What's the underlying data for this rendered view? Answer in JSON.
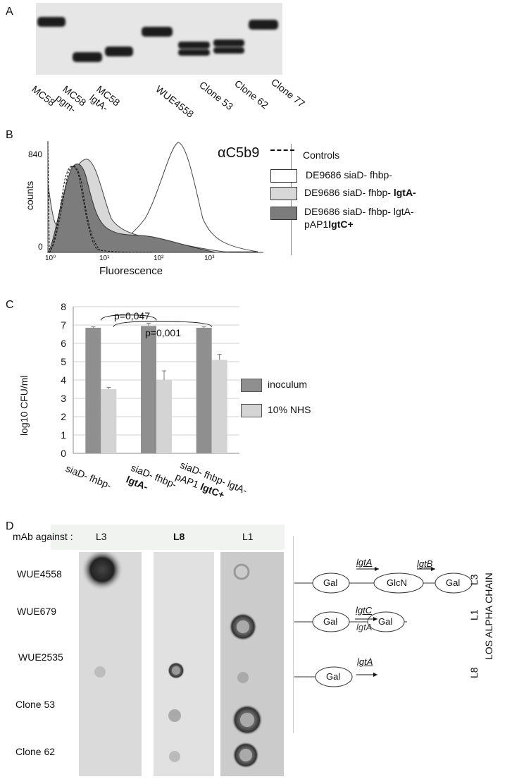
{
  "panels": {
    "a": {
      "letter": "A",
      "lanes": [
        "MC58",
        "MC58\npgm-",
        "MC58\nlgtA-",
        "WUE4558",
        "Clone 53",
        "Clone 62",
        "Clone 77"
      ]
    },
    "b": {
      "letter": "B",
      "title": "αC5b9",
      "ylabel": "counts",
      "xlabel": "Fluorescence",
      "ymax_label": "840",
      "ymin_label": "0",
      "xticks": [
        "10⁰",
        "10¹",
        "10²",
        "10³"
      ],
      "legend": [
        {
          "text": "Controls",
          "style": "dashed"
        },
        {
          "text": "DE9686 siaD- fhbp-",
          "style": "white"
        },
        {
          "text_plain": "DE9686 siaD- fhbp- ",
          "text_bold": "lgtA-",
          "style": "light"
        },
        {
          "text_plain": "DE9686 siaD- fhbp- lgtA-",
          "text_line2_plain": "pAP1",
          "text_line2_bold": "lgtC+",
          "style": "dark"
        }
      ]
    },
    "c": {
      "letter": "C",
      "p1": "p=0,047",
      "p2": "p=0,001",
      "legend": [
        "inoculum",
        "10% NHS"
      ],
      "xlabels": [
        {
          "plain": "siaD- fhbp-",
          "bold": ""
        },
        {
          "plain": "siaD- fhbp-",
          "bold": "lgtA-"
        },
        {
          "plain": "siaD- fhbp- lgtA-",
          "line2_plain": "pAP1 ",
          "line2_bold": "lgtC+"
        }
      ]
    },
    "d": {
      "letter": "D",
      "mab_label": "mAb against :",
      "columns": [
        "L3",
        "L8",
        "L1"
      ],
      "rows": [
        "WUE4558",
        "WUE679",
        "WUE2535",
        "Clone 53",
        "Clone 62"
      ],
      "chain_title": "LOS ALPHA CHAIN",
      "chain_rows": [
        {
          "label": "L3",
          "sugars": [
            "Gal",
            "GlcN",
            "Gal"
          ],
          "genes": [
            "lgtA",
            "lgtB"
          ]
        },
        {
          "label": "L1",
          "sugars": [
            "Gal",
            "Gal"
          ],
          "genes": [
            "lgtC",
            "lgtA"
          ]
        },
        {
          "label": "L8",
          "sugars": [
            "Gal"
          ],
          "genes": [
            "lgtA"
          ]
        }
      ]
    }
  },
  "chart_data": {
    "type": "bar",
    "title": "",
    "xlabel": "",
    "ylabel": "log10 CFU/ml",
    "ylim": [
      0,
      8
    ],
    "yticks": [
      0,
      1,
      2,
      3,
      4,
      5,
      6,
      7,
      8
    ],
    "categories": [
      "siaD- fhbp-",
      "siaD- fhbp- lgtA-",
      "siaD- fhbp- lgtA- pAP1 lgtC+"
    ],
    "series": [
      {
        "name": "inoculum",
        "values": [
          6.85,
          6.95,
          6.85
        ],
        "errors": [
          0.05,
          0.15,
          0.05
        ],
        "color": "#8f8f8f"
      },
      {
        "name": "10% NHS",
        "values": [
          3.5,
          4.0,
          5.1
        ],
        "errors": [
          0.1,
          0.5,
          0.3
        ],
        "color": "#d4d4d4"
      }
    ],
    "grid": true,
    "legend_position": "right"
  }
}
